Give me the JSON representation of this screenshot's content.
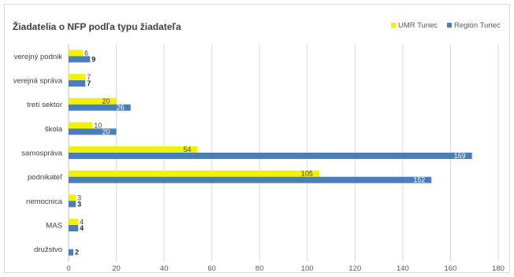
{
  "chart_data": {
    "type": "bar",
    "orientation": "horizontal",
    "title": "Žiadatelia o NFP podľa typu žiadateľa",
    "categories": [
      "verejný podnik",
      "verejná správa",
      "tretí sektor",
      "škola",
      "samospráva",
      "podnikateľ",
      "nemocnica",
      "MAS",
      "družstvo"
    ],
    "series": [
      {
        "name": "UMR Turiec",
        "color": "#f2f200",
        "values": [
          6,
          7,
          20,
          10,
          54,
          105,
          3,
          4,
          0
        ]
      },
      {
        "name": "Región Turiec",
        "color": "#4a7ebb",
        "values": [
          9,
          7,
          26,
          20,
          169,
          152,
          3,
          4,
          2
        ]
      }
    ],
    "xlim": [
      0,
      180
    ],
    "xticks": [
      0,
      20,
      40,
      60,
      80,
      100,
      120,
      140,
      160,
      180
    ],
    "grid": true,
    "legend": "top-right"
  }
}
